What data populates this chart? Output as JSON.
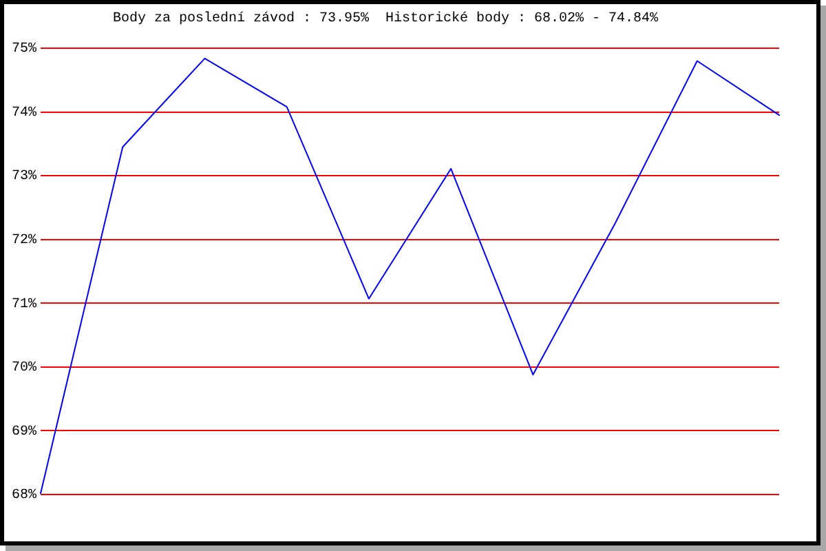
{
  "chart_data": {
    "type": "line",
    "title": "Body za poslední závod : 73.95%  Historické body : 68.02% - 74.84%",
    "categories": [
      null,
      null,
      null,
      null,
      null,
      null,
      null,
      null,
      null,
      null
    ],
    "series": [
      {
        "color": "#0000ff",
        "values": [
          68.02,
          73.45,
          74.84,
          74.08,
          71.07,
          73.11,
          69.88,
          72.25,
          74.8,
          73.95
        ]
      }
    ],
    "ylim": [
      68,
      75
    ],
    "yticks": [
      {
        "value": 68,
        "label": "68%"
      },
      {
        "value": 69,
        "label": "69%"
      },
      {
        "value": 70,
        "label": "70%"
      },
      {
        "value": 71,
        "label": "71%"
      },
      {
        "value": 72,
        "label": "72%"
      },
      {
        "value": 73,
        "label": "73%"
      },
      {
        "value": 74,
        "label": "74%"
      },
      {
        "value": 75,
        "label": "75%"
      }
    ],
    "grid": "y",
    "marker": "none",
    "tick_labels": "y"
  }
}
